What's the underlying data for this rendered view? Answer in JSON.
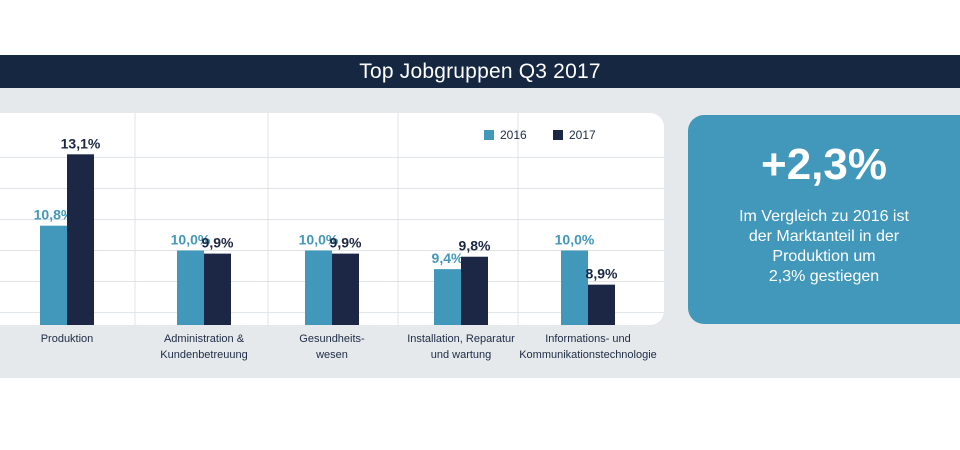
{
  "header": {
    "title": "Top Jobgruppen Q3 2017"
  },
  "chart_data": {
    "type": "bar",
    "categories": [
      "Produktion",
      "Administration &\nKundenbetreuung",
      "Gesundheits-\nwesen",
      "Installation, Reparatur\nund wartung",
      "Informations- und\nKommunikationstechnologie"
    ],
    "series": [
      {
        "name": "2016",
        "values": [
          10.8,
          10.0,
          10.0,
          9.4,
          10.0
        ],
        "labels": [
          "10,8%",
          "10,0%",
          "10,0%",
          "9,4%",
          "10,0%"
        ],
        "color": "#4298ba"
      },
      {
        "name": "2017",
        "values": [
          13.1,
          9.9,
          9.9,
          9.8,
          8.9
        ],
        "labels": [
          "13,1%",
          "9,9%",
          "9,9%",
          "9,8%",
          "8,9%"
        ],
        "color": "#1c2745"
      }
    ],
    "ylim": [
      7.6,
      13.4
    ],
    "gridlines": [
      8,
      9,
      10,
      11,
      12,
      13
    ],
    "grid": true,
    "legend": "top-right",
    "title": "",
    "xlabel": "",
    "ylabel": ""
  },
  "info_box": {
    "value": "+2,3%",
    "text": "Im Vergleich zu 2016 ist\nder Marktanteil in der\nProduktion um\n2,3% gestiegen"
  }
}
